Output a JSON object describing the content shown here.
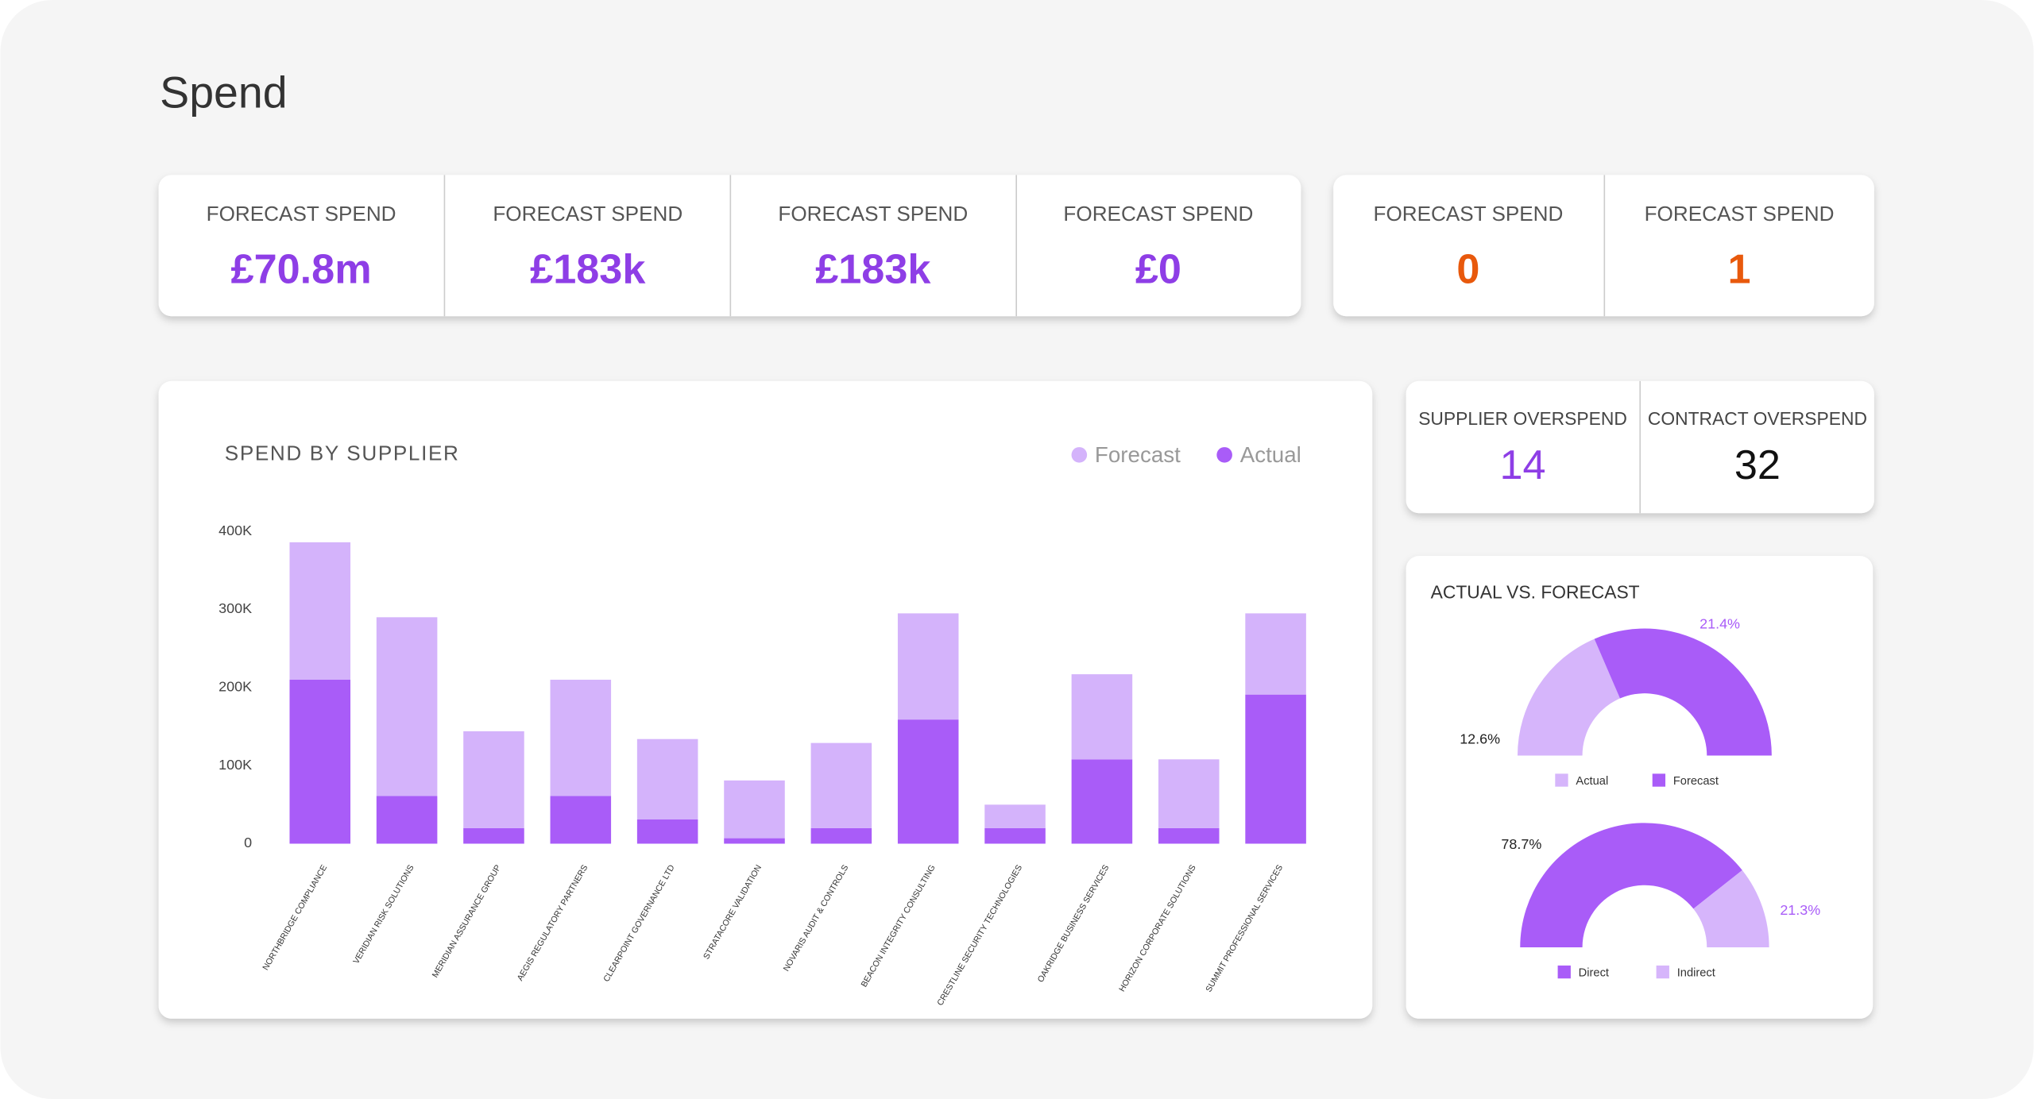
{
  "page_title": "Spend",
  "kpi_cards": [
    {
      "label": "FORECAST SPEND",
      "value": "£70.8m"
    },
    {
      "label": "FORECAST SPEND",
      "value": "£183k"
    },
    {
      "label": "FORECAST SPEND",
      "value": "£183k"
    },
    {
      "label": "FORECAST SPEND",
      "value": "£0"
    }
  ],
  "kpi_cards_2": [
    {
      "label": "FORECAST SPEND",
      "value": 0
    },
    {
      "label": "FORECAST SPEND",
      "value": 1
    }
  ],
  "overspend_cards": [
    {
      "label": "SUPPLIER OVERSPEND",
      "value": 14
    },
    {
      "label": "CONTRACT OVERSPEND",
      "value": 32
    }
  ],
  "chart_data": [
    {
      "type": "bar",
      "title": "SPEND BY SUPPLIER",
      "stacked": true,
      "legend": "top-right",
      "categories": [
        "NORTHBRIDGE COMPLIANCE",
        "VERIDIAN RISK SOLUTIONS",
        "MERIDIAN ASSURANCE GROUP",
        "AEGIS REGULATORY PARTNERS",
        "CLEARPOINT GOVERNANCE LTD",
        "STRATACORE VALIDATION",
        "NOVARIS AUDIT & CONTROLS",
        "BEACON INTEGRITY CONSULTING",
        "CRESTLINE SECURITY TECHNOLOGIES",
        "OAKRIDGE BUSINESS SERVICES",
        "HORIZON CORPORATE SOLUTIONS",
        "SUMMIT PROFESSIONAL SERVICES"
      ],
      "series": [
        {
          "name": "Forecast",
          "color": "#d4b3fb",
          "values": [
            176000,
            229000,
            124000,
            149000,
            103000,
            74000,
            109000,
            136000,
            30000,
            109000,
            88000,
            104000
          ]
        },
        {
          "name": "Actual",
          "color": "#a95cf8",
          "values": [
            210000,
            61000,
            20000,
            61000,
            31000,
            7000,
            20000,
            159000,
            20000,
            108000,
            20000,
            191000
          ]
        }
      ],
      "ylim": [
        0,
        400000
      ],
      "yticks": [
        0,
        {
          "value": 100000,
          "label": "100K"
        },
        {
          "value": 200000,
          "label": "200K"
        },
        {
          "value": 300000,
          "label": "300K"
        },
        {
          "value": 400000,
          "label": "400K"
        }
      ]
    },
    {
      "type": "pie",
      "half": true,
      "title": "ACTUAL VS. FORECAST",
      "categories": [
        "Actual",
        "Forecast"
      ],
      "values": [
        12.6,
        21.4
      ],
      "value_labels": [
        "12.6%",
        "21.4%"
      ],
      "colors": [
        "#d6b5fb",
        "#a95cf8"
      ]
    },
    {
      "type": "pie",
      "half": true,
      "categories": [
        "Direct",
        "Indirect"
      ],
      "values": [
        78.7,
        21.3
      ],
      "value_labels": [
        "78.7%",
        "21.3%"
      ],
      "colors": [
        "#a95cf8",
        "#d6b5fb"
      ]
    }
  ]
}
